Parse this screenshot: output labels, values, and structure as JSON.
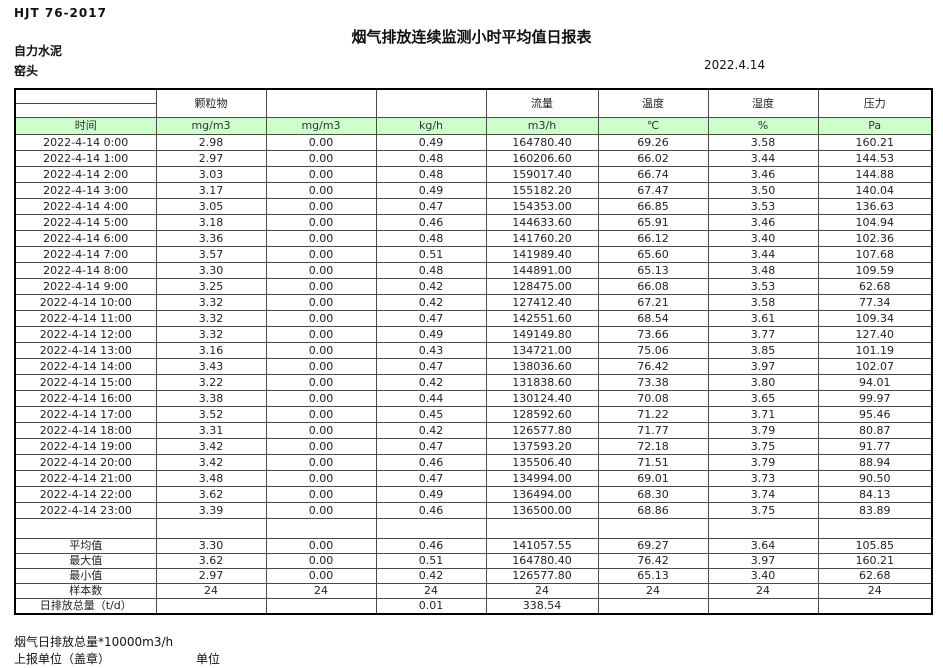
{
  "page": {
    "doc_code": "HJT 76-2017",
    "title": "烟气排放连续监测小时平均值日报表",
    "company": "自力水泥",
    "station": "窑头",
    "date": "2022.4.14"
  },
  "colors": {
    "header_green": "#ccffcc"
  },
  "table": {
    "group_headers": [
      "",
      "颗粒物",
      "",
      "",
      "流量",
      "温度",
      "湿度",
      "压力"
    ],
    "unit_headers": [
      "时间",
      "mg/m3",
      "mg/m3",
      "kg/h",
      "m3/h",
      "℃",
      "%",
      "Pa"
    ],
    "rows": [
      [
        "2022-4-14 0:00",
        "2.98",
        "0.00",
        "0.49",
        "164780.40",
        "69.26",
        "3.58",
        "160.21"
      ],
      [
        "2022-4-14 1:00",
        "2.97",
        "0.00",
        "0.48",
        "160206.60",
        "66.02",
        "3.44",
        "144.53"
      ],
      [
        "2022-4-14 2:00",
        "3.03",
        "0.00",
        "0.48",
        "159017.40",
        "66.74",
        "3.46",
        "144.88"
      ],
      [
        "2022-4-14 3:00",
        "3.17",
        "0.00",
        "0.49",
        "155182.20",
        "67.47",
        "3.50",
        "140.04"
      ],
      [
        "2022-4-14 4:00",
        "3.05",
        "0.00",
        "0.47",
        "154353.00",
        "66.85",
        "3.53",
        "136.63"
      ],
      [
        "2022-4-14 5:00",
        "3.18",
        "0.00",
        "0.46",
        "144633.60",
        "65.91",
        "3.46",
        "104.94"
      ],
      [
        "2022-4-14 6:00",
        "3.36",
        "0.00",
        "0.48",
        "141760.20",
        "66.12",
        "3.40",
        "102.36"
      ],
      [
        "2022-4-14 7:00",
        "3.57",
        "0.00",
        "0.51",
        "141989.40",
        "65.60",
        "3.44",
        "107.68"
      ],
      [
        "2022-4-14 8:00",
        "3.30",
        "0.00",
        "0.48",
        "144891.00",
        "65.13",
        "3.48",
        "109.59"
      ],
      [
        "2022-4-14 9:00",
        "3.25",
        "0.00",
        "0.42",
        "128475.00",
        "66.08",
        "3.53",
        "62.68"
      ],
      [
        "2022-4-14 10:00",
        "3.32",
        "0.00",
        "0.42",
        "127412.40",
        "67.21",
        "3.58",
        "77.34"
      ],
      [
        "2022-4-14 11:00",
        "3.32",
        "0.00",
        "0.47",
        "142551.60",
        "68.54",
        "3.61",
        "109.34"
      ],
      [
        "2022-4-14 12:00",
        "3.32",
        "0.00",
        "0.49",
        "149149.80",
        "73.66",
        "3.77",
        "127.40"
      ],
      [
        "2022-4-14 13:00",
        "3.16",
        "0.00",
        "0.43",
        "134721.00",
        "75.06",
        "3.85",
        "101.19"
      ],
      [
        "2022-4-14 14:00",
        "3.43",
        "0.00",
        "0.47",
        "138036.60",
        "76.42",
        "3.97",
        "102.07"
      ],
      [
        "2022-4-14 15:00",
        "3.22",
        "0.00",
        "0.42",
        "131838.60",
        "73.38",
        "3.80",
        "94.01"
      ],
      [
        "2022-4-14 16:00",
        "3.38",
        "0.00",
        "0.44",
        "130124.40",
        "70.08",
        "3.65",
        "99.97"
      ],
      [
        "2022-4-14 17:00",
        "3.52",
        "0.00",
        "0.45",
        "128592.60",
        "71.22",
        "3.71",
        "95.46"
      ],
      [
        "2022-4-14 18:00",
        "3.31",
        "0.00",
        "0.42",
        "126577.80",
        "71.77",
        "3.79",
        "80.87"
      ],
      [
        "2022-4-14 19:00",
        "3.42",
        "0.00",
        "0.47",
        "137593.20",
        "72.18",
        "3.75",
        "91.77"
      ],
      [
        "2022-4-14 20:00",
        "3.42",
        "0.00",
        "0.46",
        "135506.40",
        "71.51",
        "3.79",
        "88.94"
      ],
      [
        "2022-4-14 21:00",
        "3.48",
        "0.00",
        "0.47",
        "134994.00",
        "69.01",
        "3.73",
        "90.50"
      ],
      [
        "2022-4-14 22:00",
        "3.62",
        "0.00",
        "0.49",
        "136494.00",
        "68.30",
        "3.74",
        "84.13"
      ],
      [
        "2022-4-14 23:00",
        "3.39",
        "0.00",
        "0.46",
        "136500.00",
        "68.86",
        "3.75",
        "83.89"
      ]
    ],
    "summary": [
      [
        "平均值",
        "3.30",
        "0.00",
        "0.46",
        "141057.55",
        "69.27",
        "3.64",
        "105.85"
      ],
      [
        "最大值",
        "3.62",
        "0.00",
        "0.51",
        "164780.40",
        "76.42",
        "3.97",
        "160.21"
      ],
      [
        "最小值",
        "2.97",
        "0.00",
        "0.42",
        "126577.80",
        "65.13",
        "3.40",
        "62.68"
      ],
      [
        "样本数",
        "24",
        "24",
        "24",
        "24",
        "24",
        "24",
        "24"
      ],
      [
        "日排放总量（t/d）",
        "",
        "",
        "0.01",
        "338.54",
        "",
        "",
        ""
      ]
    ]
  },
  "footer": {
    "note": "烟气日排放总量*10000m3/h",
    "report_unit_label": "上报单位（盖章）",
    "unit_label": "单位"
  }
}
